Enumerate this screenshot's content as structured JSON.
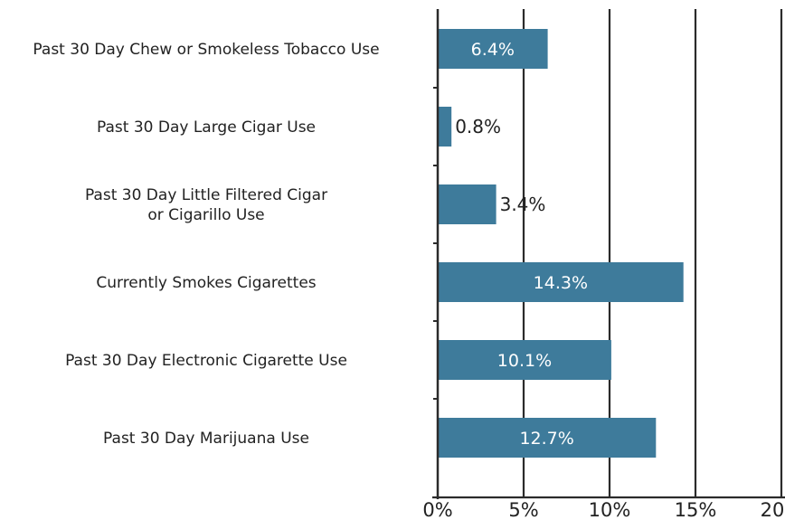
{
  "chart_data": {
    "type": "bar",
    "orientation": "horizontal",
    "title": "",
    "xlabel": "",
    "ylabel": "",
    "categories": [
      "Past 30 Day Chew or Smokeless Tobacco Use",
      "Past 30 Day Large Cigar Use",
      "Past 30 Day Little Filtered Cigar or Cigarillo Use",
      "Currently Smokes Cigarettes",
      "Past 30 Day Electronic Cigarette Use",
      "Past 30 Day Marijuana Use"
    ],
    "category_lines": [
      [
        "Past 30 Day Chew or Smokeless Tobacco Use"
      ],
      [
        "Past 30 Day Large Cigar Use"
      ],
      [
        "Past 30 Day Little Filtered Cigar",
        "or Cigarillo Use"
      ],
      [
        "Currently Smokes Cigarettes"
      ],
      [
        "Past 30 Day Electronic Cigarette Use"
      ],
      [
        "Past 30 Day Marijuana Use"
      ]
    ],
    "values": [
      6.4,
      0.8,
      3.4,
      14.3,
      10.1,
      12.7
    ],
    "value_labels": [
      "6.4%",
      "0.8%",
      "3.4%",
      "14.3%",
      "10.1%",
      "12.7%"
    ],
    "xlim": [
      0,
      20
    ],
    "x_ticks": [
      0,
      5,
      10,
      15,
      20
    ],
    "x_tick_labels": [
      "0%",
      "5%",
      "10%",
      "15%",
      "20%"
    ],
    "grid": "vertical",
    "bar_color": "#3e7b9b",
    "grid_color": "#2b2b2b"
  }
}
